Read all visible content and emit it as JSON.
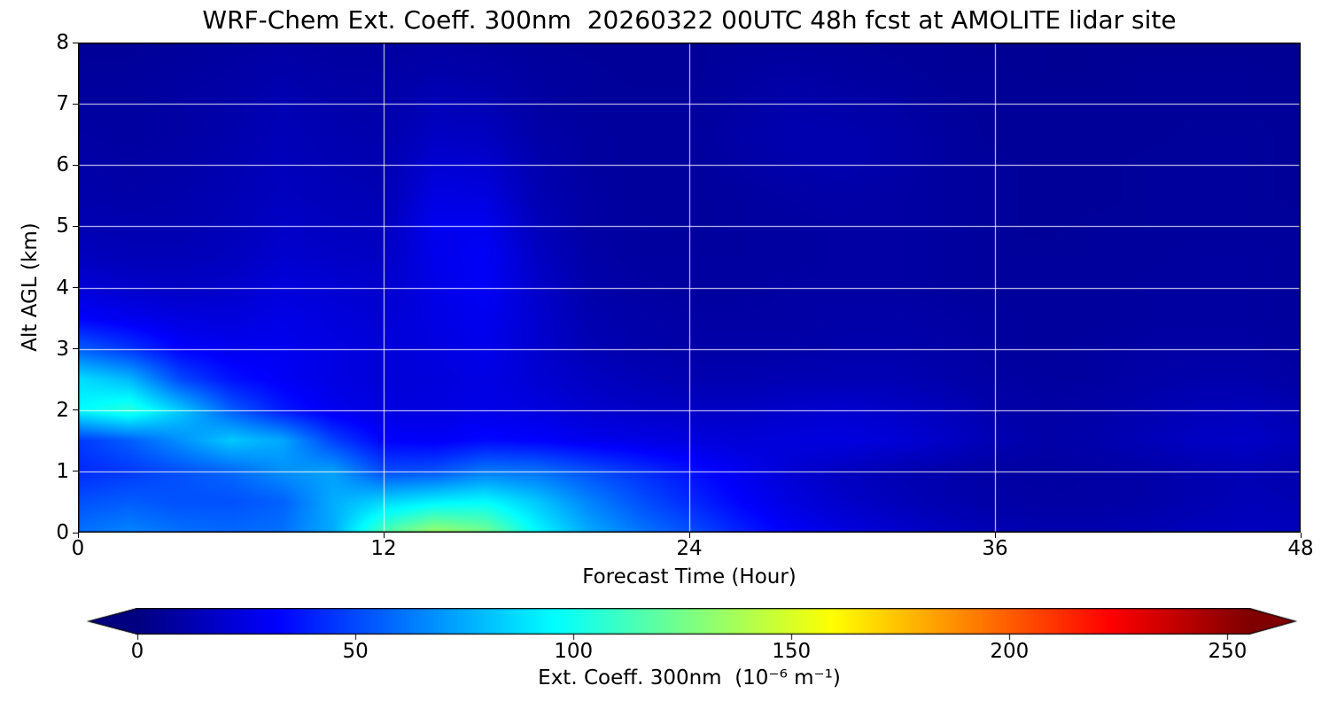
{
  "chart_data": {
    "type": "heatmap",
    "title": "WRF-Chem Ext. Coeff. 300nm  20260322 00UTC 48h fcst at AMOLITE lidar site",
    "xlabel": "Forecast Time (Hour)",
    "ylabel": "Alt AGL (km)",
    "colorbar_label": "Ext. Coeff. 300nm  (10⁻⁶ m⁻¹)",
    "colormap": "jet",
    "vmin": 0,
    "vmax": 255,
    "xlim": [
      0,
      48
    ],
    "ylim": [
      0,
      8
    ],
    "x_ticks": [
      0,
      12,
      24,
      36,
      48
    ],
    "y_ticks": [
      0,
      1,
      2,
      3,
      4,
      5,
      6,
      7,
      8
    ],
    "grid_x": [
      12,
      24,
      36
    ],
    "grid_y": [
      1,
      2,
      3,
      4,
      5,
      6,
      7
    ],
    "colorbar_ticks": [
      0,
      50,
      100,
      150,
      200,
      250
    ],
    "colorbar_extend": "both",
    "x_hours": [
      0,
      2,
      4,
      6,
      8,
      10,
      12,
      14,
      16,
      18,
      20,
      22,
      24,
      26,
      28,
      30,
      32,
      34,
      36,
      38,
      40,
      42,
      44,
      46,
      48
    ],
    "y_km": [
      0,
      0.5,
      1,
      1.5,
      2,
      2.5,
      3,
      3.5,
      4,
      4.5,
      5,
      5.5,
      6,
      6.5,
      7,
      7.5,
      8
    ],
    "values_units": "1e-6 per m",
    "values": [
      [
        60,
        65,
        60,
        58,
        60,
        75,
        115,
        135,
        125,
        95,
        75,
        62,
        52,
        40,
        30,
        24,
        20,
        16,
        13,
        12,
        12,
        13,
        15,
        16,
        15
      ],
      [
        52,
        55,
        52,
        52,
        56,
        75,
        85,
        92,
        95,
        82,
        65,
        52,
        42,
        32,
        24,
        19,
        15,
        12,
        10,
        9,
        9,
        10,
        12,
        14,
        13
      ],
      [
        42,
        46,
        52,
        58,
        68,
        72,
        50,
        52,
        62,
        60,
        52,
        44,
        36,
        28,
        21,
        16,
        13,
        11,
        9,
        8,
        9,
        10,
        12,
        13,
        11
      ],
      [
        46,
        55,
        68,
        82,
        74,
        48,
        32,
        30,
        34,
        32,
        28,
        26,
        24,
        22,
        23,
        24,
        22,
        18,
        13,
        10,
        11,
        14,
        17,
        18,
        14
      ],
      [
        95,
        105,
        82,
        55,
        38,
        28,
        24,
        24,
        26,
        24,
        20,
        18,
        17,
        17,
        19,
        20,
        18,
        15,
        11,
        9,
        10,
        12,
        14,
        15,
        12
      ],
      [
        88,
        78,
        50,
        36,
        30,
        25,
        22,
        23,
        25,
        21,
        17,
        14,
        12,
        12,
        13,
        13,
        13,
        11,
        9,
        8,
        8,
        10,
        11,
        11,
        9
      ],
      [
        55,
        45,
        32,
        28,
        28,
        25,
        22,
        24,
        27,
        20,
        14,
        11,
        10,
        10,
        10,
        11,
        11,
        10,
        8,
        7,
        8,
        9,
        9,
        9,
        8
      ],
      [
        32,
        28,
        24,
        23,
        26,
        23,
        21,
        25,
        28,
        20,
        12,
        10,
        9,
        9,
        9,
        10,
        10,
        9,
        8,
        7,
        7,
        8,
        8,
        8,
        7
      ],
      [
        22,
        19,
        17,
        19,
        23,
        21,
        19,
        26,
        30,
        19,
        11,
        9,
        8,
        8,
        9,
        9,
        9,
        8,
        7,
        7,
        7,
        8,
        8,
        8,
        7
      ],
      [
        16,
        14,
        14,
        16,
        20,
        18,
        17,
        27,
        30,
        17,
        10,
        8,
        8,
        8,
        8,
        9,
        9,
        8,
        7,
        7,
        7,
        7,
        8,
        8,
        7
      ],
      [
        13,
        12,
        12,
        14,
        18,
        16,
        15,
        28,
        28,
        15,
        9,
        8,
        7,
        8,
        8,
        9,
        9,
        8,
        7,
        6,
        7,
        7,
        7,
        7,
        7
      ],
      [
        11,
        10,
        11,
        13,
        16,
        14,
        13,
        25,
        24,
        13,
        9,
        7,
        7,
        8,
        9,
        10,
        9,
        8,
        7,
        6,
        6,
        7,
        7,
        7,
        6
      ],
      [
        10,
        9,
        10,
        12,
        15,
        13,
        12,
        21,
        20,
        12,
        8,
        7,
        7,
        9,
        11,
        12,
        10,
        8,
        7,
        6,
        6,
        7,
        7,
        7,
        6
      ],
      [
        9,
        8,
        9,
        11,
        14,
        12,
        11,
        17,
        16,
        10,
        8,
        7,
        7,
        10,
        12,
        12,
        10,
        8,
        6,
        6,
        6,
        6,
        7,
        7,
        6
      ],
      [
        8,
        8,
        9,
        10,
        13,
        11,
        10,
        14,
        13,
        9,
        7,
        7,
        7,
        9,
        11,
        10,
        9,
        7,
        6,
        6,
        6,
        6,
        6,
        6,
        6
      ],
      [
        7,
        7,
        8,
        9,
        11,
        9,
        9,
        11,
        10,
        8,
        7,
        6,
        6,
        8,
        9,
        8,
        7,
        6,
        6,
        5,
        5,
        6,
        6,
        6,
        5
      ],
      [
        6,
        6,
        7,
        8,
        9,
        8,
        8,
        9,
        8,
        7,
        6,
        6,
        6,
        7,
        7,
        7,
        6,
        6,
        5,
        5,
        5,
        5,
        5,
        5,
        5
      ]
    ],
    "colors": {
      "background_low": "#000080",
      "gridline": "#ffffff",
      "spine": "#000000"
    }
  }
}
